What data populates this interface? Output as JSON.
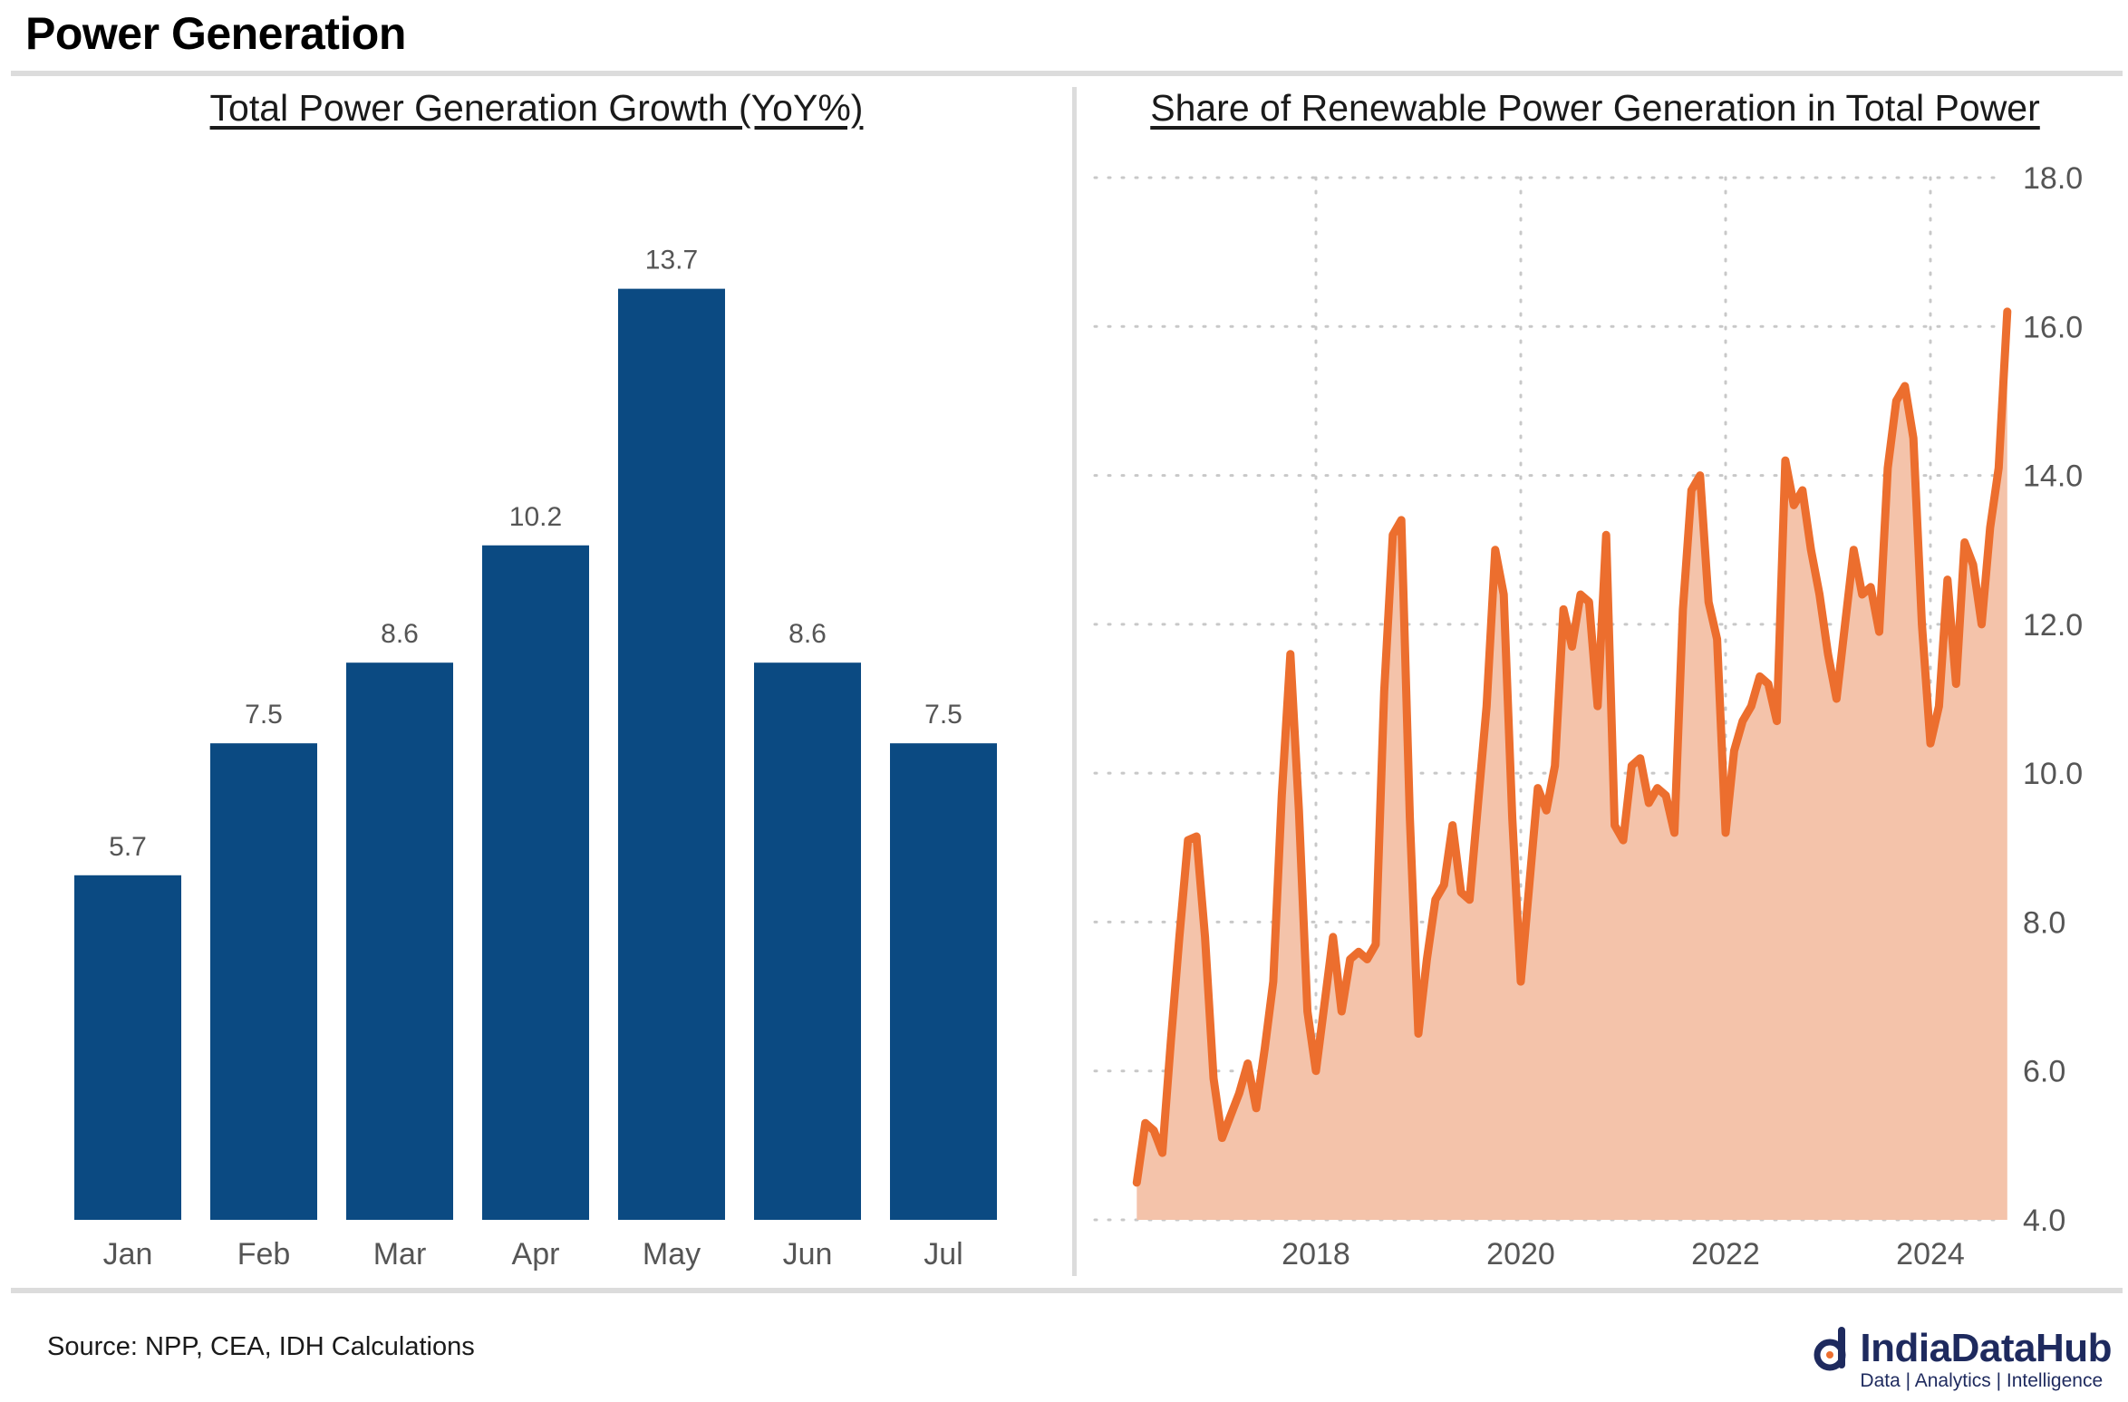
{
  "page": {
    "title": "Power Generation",
    "source": "Source: NPP, CEA, IDH Calculations",
    "logo": {
      "name": "IndiaDataHub",
      "tagline": "Data | Analytics | Intelligence"
    }
  },
  "colors": {
    "bar": "#0b4a82",
    "line": "#ec6e2e",
    "area": "#f4c3aa",
    "grid": "#c8c8c8",
    "text": "#555555",
    "brand": "#1e2a5e"
  },
  "chart_data": [
    {
      "type": "bar",
      "title": "Total Power Generation Growth (YoY%)",
      "categories": [
        "Jan",
        "Feb",
        "Mar",
        "Apr",
        "May",
        "Jun",
        "Jul"
      ],
      "values": [
        5.7,
        7.5,
        8.6,
        10.2,
        13.7,
        8.6,
        7.5
      ],
      "data_labels": [
        "5.7",
        "7.5",
        "8.6",
        "10.2",
        "13.7",
        "8.6",
        "7.5"
      ],
      "ylim": [
        1.0,
        14.4
      ],
      "grid": false,
      "legend": "none"
    },
    {
      "type": "area",
      "title": "Share of Renewable Power Generation in Total Power",
      "x_start": "2016-04",
      "x_end": "2024-07",
      "x_ticks": [
        "2018",
        "2020",
        "2022",
        "2024"
      ],
      "y_ticks": [
        "4.0",
        "6.0",
        "8.0",
        "10.0",
        "12.0",
        "14.0",
        "16.0",
        "18.0"
      ],
      "ylim": [
        4.0,
        18.0
      ],
      "y_axis_side": "right",
      "grid": true,
      "legend": "none",
      "series": [
        {
          "values": [
            4.5,
            5.3,
            5.2,
            4.9,
            6.4,
            7.8,
            9.1,
            9.15,
            7.8,
            5.9,
            5.1,
            5.4,
            5.7,
            6.1,
            5.5,
            6.3,
            7.2,
            9.7,
            11.6,
            9.5,
            6.8,
            6.0,
            6.9,
            7.8,
            6.8,
            7.5,
            7.6,
            7.5,
            7.7,
            11.1,
            13.2,
            13.4,
            9.4,
            6.5,
            7.5,
            8.3,
            8.5,
            9.3,
            8.4,
            8.3,
            9.6,
            10.9,
            13.0,
            12.4,
            9.4,
            7.2,
            8.5,
            9.8,
            9.5,
            10.1,
            12.2,
            11.7,
            12.4,
            12.3,
            10.9,
            13.2,
            9.3,
            9.1,
            10.1,
            10.2,
            9.6,
            9.8,
            9.7,
            9.2,
            12.2,
            13.8,
            14.0,
            12.3,
            11.8,
            9.2,
            10.3,
            10.7,
            10.9,
            11.3,
            11.2,
            10.7,
            14.2,
            13.6,
            13.8,
            13.0,
            12.4,
            11.6,
            11.0,
            12.0,
            13.0,
            12.4,
            12.5,
            11.9,
            14.1,
            15.0,
            15.2,
            14.5,
            12.0,
            10.4,
            10.9,
            12.6,
            11.2,
            13.1,
            12.8,
            12.0,
            13.3,
            14.1,
            16.2
          ]
        }
      ]
    }
  ]
}
